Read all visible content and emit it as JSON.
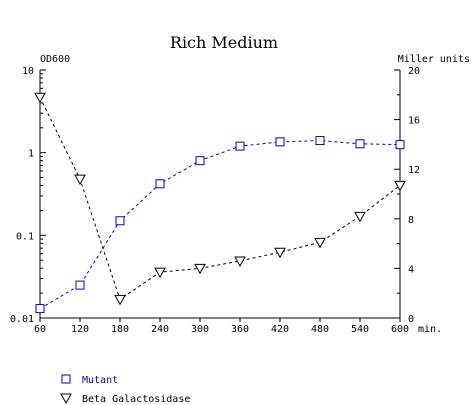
{
  "chart_data": {
    "type": "line",
    "title": "Rich Medium",
    "xlabel": "min.",
    "ylabel_left": "OD600",
    "ylabel_right": "Miller units",
    "x": [
      60,
      120,
      180,
      240,
      300,
      360,
      420,
      480,
      540,
      600
    ],
    "xlim": [
      60,
      600
    ],
    "xticks": [
      "60",
      "120",
      "180",
      "240",
      "300",
      "360",
      "420",
      "480",
      "540",
      "600"
    ],
    "y_left_scale": "log",
    "y_left_lim": [
      0.01,
      10
    ],
    "y_left_ticks": [
      "10",
      "1",
      "0.1",
      "0.01"
    ],
    "y_right_lim": [
      0,
      20
    ],
    "y_right_ticks": [
      "20",
      "16",
      "12",
      "8",
      "4",
      "0"
    ],
    "grid": false,
    "legend_position": "bottom-left",
    "series": [
      {
        "name": "Mutant",
        "axis": "left",
        "marker": "square",
        "color": "#0000cc",
        "values": [
          0.013,
          0.025,
          0.15,
          0.42,
          0.8,
          1.2,
          1.35,
          1.4,
          1.28,
          1.25
        ]
      },
      {
        "name": "Beta Galactosidase",
        "axis": "right",
        "marker": "triangle-down",
        "color": "#000000",
        "values": [
          17.8,
          11.2,
          1.5,
          3.7,
          4.0,
          4.6,
          5.3,
          6.1,
          8.2,
          10.7
        ]
      }
    ]
  }
}
